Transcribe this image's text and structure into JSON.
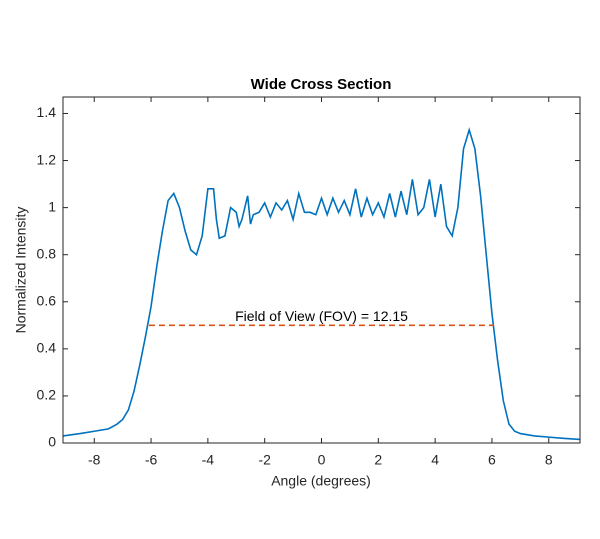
{
  "chart_data": {
    "type": "line",
    "title": "Wide Cross Section",
    "xlabel": "Angle (degrees)",
    "ylabel": "Normalized Intensity",
    "annotation": "Field of View (FOV) = 12.15",
    "xlim": [
      -9.1,
      9.1
    ],
    "ylim": [
      0,
      1.47
    ],
    "xticks": [
      -8,
      -6,
      -4,
      -2,
      0,
      2,
      4,
      6,
      8
    ],
    "yticks": [
      0,
      0.2,
      0.4,
      0.6,
      0.8,
      1,
      1.2,
      1.4
    ],
    "series": [
      {
        "color": "#0072BD",
        "dashed": false,
        "x": [
          -9.1,
          -8.5,
          -8,
          -7.5,
          -7.2,
          -7,
          -6.8,
          -6.6,
          -6.4,
          -6.2,
          -6,
          -5.8,
          -5.6,
          -5.4,
          -5.2,
          -5,
          -4.8,
          -4.6,
          -4.4,
          -4.2,
          -4,
          -3.8,
          -3.7,
          -3.6,
          -3.4,
          -3.2,
          -3,
          -2.9,
          -2.8,
          -2.6,
          -2.5,
          -2.4,
          -2.2,
          -2,
          -1.8,
          -1.6,
          -1.4,
          -1.2,
          -1,
          -0.8,
          -0.6,
          -0.4,
          -0.2,
          0,
          0.2,
          0.4,
          0.6,
          0.8,
          1,
          1.2,
          1.4,
          1.6,
          1.8,
          2,
          2.2,
          2.4,
          2.6,
          2.8,
          3,
          3.2,
          3.4,
          3.6,
          3.8,
          4,
          4.2,
          4.4,
          4.6,
          4.8,
          5,
          5.2,
          5.4,
          5.6,
          5.8,
          6,
          6.2,
          6.4,
          6.6,
          6.8,
          7,
          7.5,
          8,
          8.5,
          9.1
        ],
        "values": [
          0.03,
          0.04,
          0.05,
          0.06,
          0.08,
          0.1,
          0.14,
          0.22,
          0.33,
          0.45,
          0.58,
          0.75,
          0.9,
          1.03,
          1.06,
          1.0,
          0.9,
          0.82,
          0.8,
          0.88,
          1.08,
          1.08,
          0.95,
          0.87,
          0.88,
          1.0,
          0.98,
          0.92,
          0.95,
          1.05,
          0.93,
          0.97,
          0.98,
          1.02,
          0.96,
          1.02,
          0.99,
          1.03,
          0.95,
          1.06,
          0.98,
          0.98,
          0.97,
          1.04,
          0.97,
          1.04,
          0.98,
          1.03,
          0.97,
          1.08,
          0.96,
          1.04,
          0.97,
          1.02,
          0.96,
          1.06,
          0.96,
          1.07,
          0.97,
          1.12,
          0.97,
          1.0,
          1.12,
          0.96,
          1.1,
          0.92,
          0.88,
          1.0,
          1.25,
          1.33,
          1.25,
          1.05,
          0.8,
          0.55,
          0.35,
          0.18,
          0.08,
          0.05,
          0.04,
          0.03,
          0.025,
          0.02,
          0.015
        ]
      },
      {
        "color": "#D95319",
        "dashed": true,
        "x": [
          -6.075,
          6.075
        ],
        "values": [
          0.5,
          0.5
        ]
      }
    ]
  }
}
